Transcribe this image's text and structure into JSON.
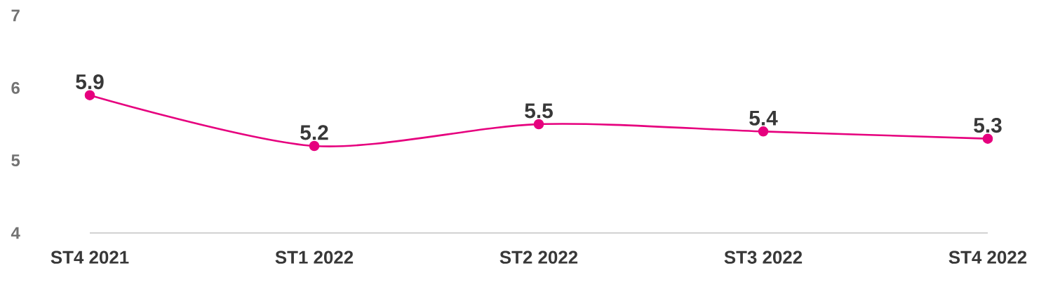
{
  "chart_data": {
    "type": "line",
    "categories": [
      "ST4 2021",
      "ST1 2022",
      "ST2 2022",
      "ST3 2022",
      "ST4 2022"
    ],
    "values": [
      5.9,
      5.2,
      5.5,
      5.4,
      5.3
    ],
    "color": "#e6007e",
    "marker": "circle",
    "data_labels": true,
    "ylim": [
      4,
      7
    ],
    "yticks": [
      4,
      5,
      6,
      7
    ]
  }
}
